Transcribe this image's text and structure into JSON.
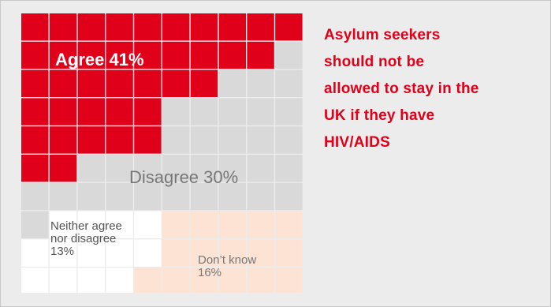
{
  "chart_data": {
    "type": "waffle",
    "grid": {
      "rows": 10,
      "cols": 10
    },
    "categories": [
      {
        "name": "Agree",
        "label": "Agree 41%",
        "value": 41,
        "color": "#e1001a",
        "label_color": "#ffffff"
      },
      {
        "name": "Disagree",
        "label": "Disagree 30%",
        "value": 30,
        "color": "#d9d9d9",
        "label_color": "#777777"
      },
      {
        "name": "Neither agree nor disagree",
        "label_lines": [
          "Neither agree",
          "nor disagree",
          "13%"
        ],
        "value": 13,
        "color": "#ffffff",
        "label_color": "#555555"
      },
      {
        "name": "Don't know",
        "label_lines": [
          "Don’t know",
          "16%"
        ],
        "value": 16,
        "color": "#fce3d4",
        "label_color": "#777777"
      }
    ]
  },
  "headline": {
    "lines": [
      "Asylum seekers",
      "should not be",
      "allowed to stay in the",
      "UK if they have",
      "HIV/AIDS"
    ],
    "color": "#e1001a"
  }
}
